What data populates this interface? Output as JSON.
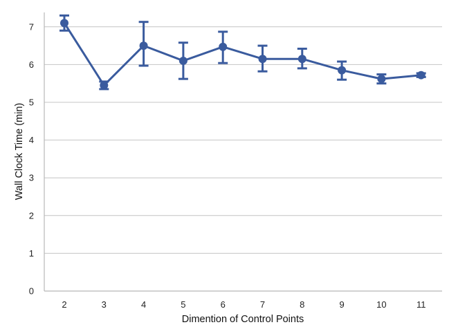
{
  "chart_data": {
    "type": "line",
    "xlabel": "Dimention of Control Points",
    "ylabel": "Wall Clock Time (min)",
    "categories": [
      "2",
      "3",
      "4",
      "5",
      "6",
      "7",
      "8",
      "9",
      "10",
      "11"
    ],
    "ylim": [
      0,
      7.4
    ],
    "yticks": [
      "0",
      "1",
      "2",
      "3",
      "4",
      "5",
      "6",
      "7"
    ],
    "grid": "horizontal",
    "series": [
      {
        "values": [
          7.1,
          5.45,
          6.5,
          6.1,
          6.47,
          6.15,
          6.15,
          5.85,
          5.62,
          5.72
        ],
        "error_low": [
          6.9,
          5.35,
          5.97,
          5.62,
          6.04,
          5.82,
          5.9,
          5.6,
          5.5,
          5.67
        ],
        "error_high": [
          7.3,
          5.55,
          7.13,
          6.58,
          6.87,
          6.5,
          6.42,
          6.08,
          5.74,
          5.77
        ],
        "color": "#3a5b9e"
      }
    ]
  }
}
